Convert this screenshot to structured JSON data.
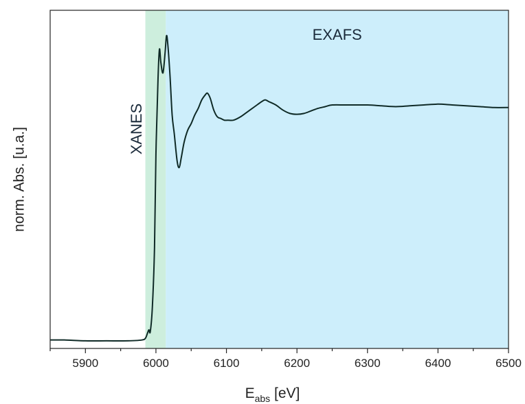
{
  "chart_data": {
    "type": "line",
    "title": "",
    "xlabel": {
      "main": "E",
      "sub": "abs",
      "unit": " [eV]"
    },
    "ylabel": "norm. Abs. [u.a.]",
    "xlim": [
      5850,
      6500
    ],
    "ylim": [
      -0.05,
      1.95
    ],
    "x_ticks": [
      5900,
      6000,
      6100,
      6200,
      6300,
      6400,
      6500
    ],
    "y_ticks_shown": false,
    "grid": false,
    "regions": [
      {
        "label": "XANES",
        "x_start": 5985,
        "x_end": 6014,
        "color": "#cdeedd",
        "label_orientation": "vertical"
      },
      {
        "label": "EXAFS",
        "x_start": 6014,
        "x_end": 6500,
        "color": "#cdeefb",
        "label_orientation": "horizontal"
      }
    ],
    "series": [
      {
        "color": "#0f2a26",
        "x": [
          5850,
          5870,
          5900,
          5930,
          5960,
          5980,
          5985,
          5988,
          5990,
          5992,
          5995,
          5998,
          6000,
          6003,
          6005,
          6007,
          6010,
          6013,
          6015,
          6017,
          6020,
          6023,
          6026,
          6030,
          6033,
          6036,
          6040,
          6045,
          6050,
          6055,
          6060,
          6065,
          6070,
          6073,
          6077,
          6082,
          6087,
          6092,
          6097,
          6102,
          6110,
          6120,
          6130,
          6140,
          6150,
          6155,
          6160,
          6170,
          6180,
          6190,
          6200,
          6210,
          6220,
          6230,
          6240,
          6250,
          6270,
          6300,
          6320,
          6340,
          6360,
          6380,
          6400,
          6420,
          6440,
          6460,
          6480,
          6500
        ],
        "y": [
          0.0,
          0.0,
          -0.005,
          -0.005,
          -0.005,
          0.0,
          0.01,
          0.04,
          0.06,
          0.05,
          0.2,
          0.55,
          1.1,
          1.55,
          1.72,
          1.64,
          1.58,
          1.7,
          1.8,
          1.74,
          1.56,
          1.33,
          1.22,
          1.06,
          1.02,
          1.08,
          1.17,
          1.24,
          1.28,
          1.33,
          1.37,
          1.42,
          1.45,
          1.46,
          1.43,
          1.36,
          1.32,
          1.31,
          1.3,
          1.3,
          1.3,
          1.32,
          1.35,
          1.38,
          1.41,
          1.42,
          1.41,
          1.39,
          1.36,
          1.34,
          1.335,
          1.34,
          1.355,
          1.37,
          1.38,
          1.39,
          1.39,
          1.39,
          1.385,
          1.38,
          1.385,
          1.39,
          1.395,
          1.39,
          1.385,
          1.38,
          1.375,
          1.375
        ]
      }
    ]
  }
}
